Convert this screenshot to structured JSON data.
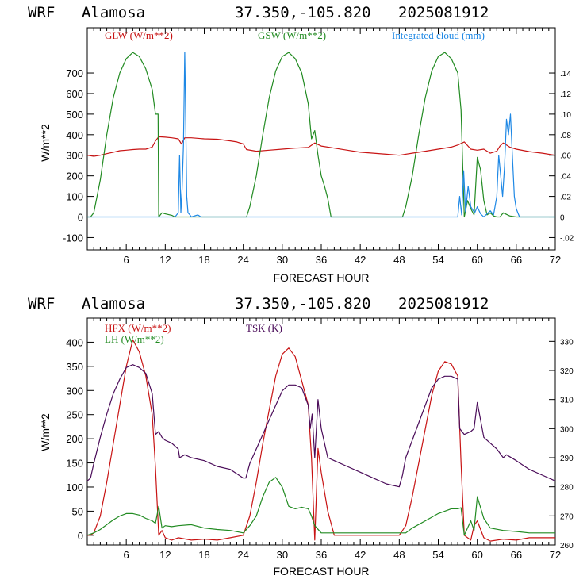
{
  "colors": {
    "red": "#c81414",
    "green": "#228b22",
    "blue": "#1e88e5",
    "purple": "#4b0d5a",
    "axis": "#000000"
  },
  "chart_data": [
    {
      "type": "line",
      "header": {
        "model": "WRF",
        "station": "Alamosa",
        "coords": "37.350,-105.820",
        "run": "2025081912"
      },
      "xlabel": "FORECAST HOUR",
      "ylabel": "W/m**2",
      "xlim": [
        0,
        72
      ],
      "ylim": [
        -160,
        920
      ],
      "y2lim": [
        -0.032,
        0.184
      ],
      "x_ticks": [
        6,
        12,
        18,
        24,
        30,
        36,
        42,
        48,
        54,
        60,
        66,
        72
      ],
      "y_ticks": [
        -100,
        0,
        100,
        200,
        300,
        400,
        500,
        600,
        700
      ],
      "y2_ticks": [
        -0.02,
        0,
        0.02,
        0.04,
        0.06,
        0.08,
        0.1,
        0.12,
        0.14
      ],
      "y2_tick_labels": [
        "-.02",
        "0",
        ".02",
        ".04",
        ".06",
        ".08",
        ".10",
        ".12",
        ".14"
      ],
      "zero_line": 0,
      "series": [
        {
          "name": "GLW (W/m**2)",
          "color": "red",
          "axis": "left",
          "x": [
            0,
            1,
            2,
            3,
            4,
            5,
            6,
            7,
            8,
            9,
            10,
            10.5,
            11,
            12,
            13,
            14,
            14.5,
            15,
            16,
            18,
            20,
            22,
            23,
            24,
            24.5,
            26,
            28,
            30,
            32,
            34,
            35,
            36,
            38,
            40,
            42,
            44,
            46,
            48,
            50,
            52,
            54,
            56,
            57,
            58,
            59,
            60,
            61,
            62,
            63,
            63.5,
            64,
            65,
            66,
            68,
            70,
            72
          ],
          "y": [
            300,
            295,
            300,
            308,
            315,
            322,
            325,
            328,
            330,
            330,
            340,
            370,
            390,
            388,
            385,
            380,
            355,
            385,
            385,
            380,
            378,
            370,
            365,
            355,
            328,
            320,
            325,
            330,
            335,
            338,
            360,
            345,
            335,
            325,
            315,
            310,
            305,
            300,
            310,
            320,
            330,
            340,
            350,
            365,
            330,
            325,
            330,
            310,
            320,
            345,
            360,
            340,
            330,
            318,
            310,
            300
          ]
        },
        {
          "name": "GSW (W/m**2)",
          "color": "green",
          "axis": "left",
          "x": [
            0,
            0.5,
            1,
            2,
            3,
            4,
            5,
            6,
            7,
            8,
            9,
            10,
            10.5,
            10.9,
            11,
            11.5,
            12,
            13,
            13.5,
            14,
            24,
            24.5,
            25,
            26,
            27,
            28,
            29,
            30,
            31,
            32,
            33,
            34,
            34.5,
            35,
            35.5,
            36,
            36.5,
            37,
            37.5,
            48,
            48.5,
            49,
            50,
            51,
            52,
            53,
            54,
            55,
            56,
            57,
            57.5,
            58,
            58.5,
            59,
            59.5,
            60,
            60.5,
            61,
            61.5,
            62,
            62.5,
            63,
            63.5,
            64,
            65,
            66,
            72
          ],
          "y": [
            0,
            0,
            20,
            180,
            400,
            580,
            700,
            770,
            800,
            780,
            720,
            620,
            500,
            500,
            0,
            20,
            15,
            8,
            0,
            0,
            0,
            0,
            50,
            200,
            400,
            580,
            710,
            780,
            800,
            770,
            700,
            550,
            380,
            420,
            300,
            200,
            150,
            90,
            0,
            0,
            0,
            50,
            200,
            400,
            580,
            710,
            780,
            800,
            770,
            700,
            520,
            0,
            80,
            40,
            10,
            290,
            230,
            80,
            10,
            20,
            5,
            0,
            0,
            20,
            5,
            0,
            0
          ]
        },
        {
          "name": "Integrated cloud (mm)",
          "color": "blue",
          "axis": "right",
          "x": [
            0,
            13.5,
            14,
            14.2,
            14.4,
            14.6,
            14.8,
            15,
            15.1,
            15.3,
            15.5,
            15.8,
            16,
            17,
            17.5,
            18,
            57,
            57.3,
            57.6,
            57.9,
            58.2,
            58.6,
            59,
            59.6,
            60,
            60.5,
            61,
            61.5,
            62,
            62.5,
            63,
            63.3,
            63.6,
            63.9,
            64.2,
            64.5,
            64.8,
            65.1,
            65.4,
            65.7,
            66,
            66.5,
            72
          ],
          "y": [
            0,
            0,
            0.004,
            0.06,
            0.004,
            0.028,
            0.07,
            0.16,
            0.12,
            0.02,
            0.004,
            0.002,
            0,
            0.002,
            0,
            0,
            0,
            0.02,
            0.002,
            0.045,
            0.005,
            0.03,
            0.01,
            0.004,
            0.01,
            0.003,
            0,
            0.003,
            0.006,
            0.002,
            0.02,
            0.06,
            0.04,
            0.02,
            0.05,
            0.095,
            0.08,
            0.1,
            0.06,
            0.02,
            0.008,
            0,
            0
          ]
        }
      ]
    },
    {
      "type": "line",
      "header": {
        "model": "WRF",
        "station": "Alamosa",
        "coords": "37.350,-105.820",
        "run": "2025081912"
      },
      "xlabel": "FORECAST HOUR",
      "ylabel": "W/m**2",
      "xlim": [
        0,
        72
      ],
      "ylim": [
        -20,
        450
      ],
      "y2lim": [
        260,
        338
      ],
      "x_ticks": [
        6,
        12,
        18,
        24,
        30,
        36,
        42,
        48,
        54,
        60,
        66,
        72
      ],
      "y_ticks": [
        0,
        50,
        100,
        150,
        200,
        250,
        300,
        350,
        400
      ],
      "y2_ticks": [
        260,
        270,
        280,
        290,
        300,
        310,
        320,
        330
      ],
      "series": [
        {
          "name": "HFX (W/m**2)",
          "color": "red",
          "axis": "left",
          "x": [
            0,
            0.5,
            1,
            2,
            3,
            4,
            5,
            6,
            7,
            8,
            9,
            10,
            10.5,
            11,
            11.5,
            12,
            13,
            14,
            16,
            18,
            20,
            22,
            24,
            25,
            26,
            27,
            28,
            29,
            30,
            31,
            32,
            33,
            34,
            34.5,
            35,
            35.5,
            36,
            37,
            38,
            48,
            49,
            50,
            51,
            52,
            53,
            54,
            55,
            56,
            57,
            57.5,
            58,
            59,
            59.5,
            60,
            61,
            62,
            64,
            66,
            68,
            70,
            72
          ],
          "y": [
            0,
            0,
            5,
            40,
            110,
            190,
            270,
            350,
            405,
            380,
            330,
            250,
            140,
            0,
            10,
            -5,
            -10,
            -5,
            -10,
            -8,
            -10,
            -5,
            0,
            40,
            110,
            190,
            260,
            330,
            375,
            388,
            370,
            320,
            270,
            160,
            -10,
            180,
            130,
            50,
            0,
            0,
            20,
            80,
            150,
            220,
            290,
            340,
            360,
            355,
            330,
            150,
            0,
            -10,
            20,
            30,
            -5,
            -12,
            -8,
            -10,
            -5,
            -5,
            -5
          ]
        },
        {
          "name": "LH (W/m**2)",
          "color": "green",
          "axis": "left",
          "x": [
            0,
            1,
            2,
            3,
            4,
            5,
            6,
            7,
            8,
            9,
            10,
            10.5,
            11,
            11.5,
            12,
            13,
            14,
            16,
            18,
            20,
            22,
            24,
            25,
            26,
            27,
            28,
            29,
            30,
            31,
            32,
            33,
            34,
            34.5,
            35,
            36,
            37,
            38,
            48,
            49,
            50,
            52,
            54,
            56,
            57,
            57.5,
            58,
            59,
            59.5,
            60,
            61,
            62,
            64,
            66,
            68,
            70,
            72
          ],
          "y": [
            0,
            5,
            12,
            22,
            32,
            40,
            45,
            45,
            42,
            35,
            30,
            25,
            60,
            15,
            20,
            18,
            20,
            22,
            15,
            12,
            10,
            5,
            20,
            40,
            80,
            110,
            120,
            100,
            60,
            55,
            58,
            55,
            40,
            20,
            5,
            5,
            5,
            5,
            5,
            15,
            30,
            45,
            55,
            55,
            57,
            0,
            30,
            10,
            80,
            35,
            15,
            10,
            8,
            5,
            5,
            5
          ]
        },
        {
          "name": "TSK (K)",
          "color": "purple",
          "axis": "right",
          "x": [
            0,
            0.5,
            1,
            2,
            3,
            4,
            5,
            6,
            7,
            8,
            9,
            10,
            10.5,
            11,
            11.5,
            12,
            13,
            14,
            14.2,
            15,
            16,
            18,
            20,
            22,
            24,
            24.4,
            25,
            26,
            27,
            28,
            29,
            30,
            31,
            32,
            33,
            34,
            34.3,
            34.6,
            35,
            35.5,
            36,
            37,
            38,
            40,
            42,
            44,
            46,
            48,
            48.5,
            49,
            50,
            51,
            52,
            53,
            54,
            55,
            56,
            57,
            57.3,
            58,
            59,
            59.5,
            60,
            60.5,
            61,
            62,
            63,
            64,
            64.5,
            66,
            68,
            70,
            72
          ],
          "y": [
            282,
            283,
            288,
            297,
            305,
            312,
            317,
            321,
            322,
            321,
            319,
            312,
            298,
            299,
            297,
            296,
            295,
            293,
            290,
            291,
            290,
            289,
            287,
            286,
            283,
            283,
            288,
            293,
            298,
            303,
            308,
            313,
            315,
            315,
            314,
            308,
            300,
            305,
            290,
            310,
            300,
            290,
            289,
            287,
            285,
            283,
            281,
            280,
            284,
            290,
            296,
            302,
            308,
            314,
            317,
            318,
            318,
            317,
            300,
            298,
            299,
            300,
            309,
            303,
            297,
            295,
            293,
            290,
            291,
            289,
            286,
            284,
            282
          ]
        }
      ]
    }
  ]
}
